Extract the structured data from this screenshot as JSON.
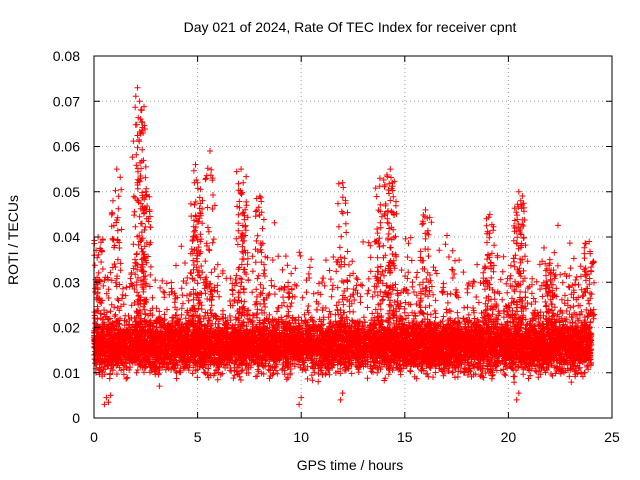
{
  "chart_data": {
    "type": "scatter",
    "title": "Day 021 of 2024, Rate Of TEC Index for receiver cpnt",
    "xlabel": "GPS time / hours",
    "ylabel": "ROTI / TECUs",
    "xlim": [
      0,
      25
    ],
    "ylim": [
      0,
      0.08
    ],
    "x_ticks": [
      "0",
      "5",
      "10",
      "15",
      "20",
      "25"
    ],
    "y_ticks": [
      "0",
      "0.01",
      "0.02",
      "0.03",
      "0.04",
      "0.05",
      "0.06",
      "0.07",
      "0.08"
    ],
    "grid": true,
    "marker": "+",
    "series_color": "#ff0000",
    "series": [
      {
        "name": "ROTI",
        "typical_range": [
          0.005,
          0.03
        ],
        "dense_band": [
          0.01,
          0.022
        ],
        "peaks": [
          {
            "x": 0.2,
            "y": 0.04
          },
          {
            "x": 1.1,
            "y": 0.055
          },
          {
            "x": 2.1,
            "y": 0.073
          },
          {
            "x": 2.2,
            "y": 0.07
          },
          {
            "x": 2.3,
            "y": 0.068
          },
          {
            "x": 2.5,
            "y": 0.05
          },
          {
            "x": 4.9,
            "y": 0.056
          },
          {
            "x": 5.0,
            "y": 0.052
          },
          {
            "x": 5.6,
            "y": 0.059
          },
          {
            "x": 7.1,
            "y": 0.055
          },
          {
            "x": 7.2,
            "y": 0.052
          },
          {
            "x": 8.0,
            "y": 0.049
          },
          {
            "x": 12.0,
            "y": 0.052
          },
          {
            "x": 13.8,
            "y": 0.053
          },
          {
            "x": 14.3,
            "y": 0.055
          },
          {
            "x": 14.4,
            "y": 0.052
          },
          {
            "x": 16.0,
            "y": 0.046
          },
          {
            "x": 19.1,
            "y": 0.045
          },
          {
            "x": 20.5,
            "y": 0.05
          },
          {
            "x": 20.6,
            "y": 0.048
          },
          {
            "x": 22.0,
            "y": 0.035
          },
          {
            "x": 23.9,
            "y": 0.039
          }
        ],
        "lows": [
          {
            "x": 0.5,
            "y": 0.003
          },
          {
            "x": 0.7,
            "y": 0.0035
          },
          {
            "x": 9.9,
            "y": 0.003
          },
          {
            "x": 11.9,
            "y": 0.004
          },
          {
            "x": 20.4,
            "y": 0.004
          }
        ]
      }
    ]
  }
}
